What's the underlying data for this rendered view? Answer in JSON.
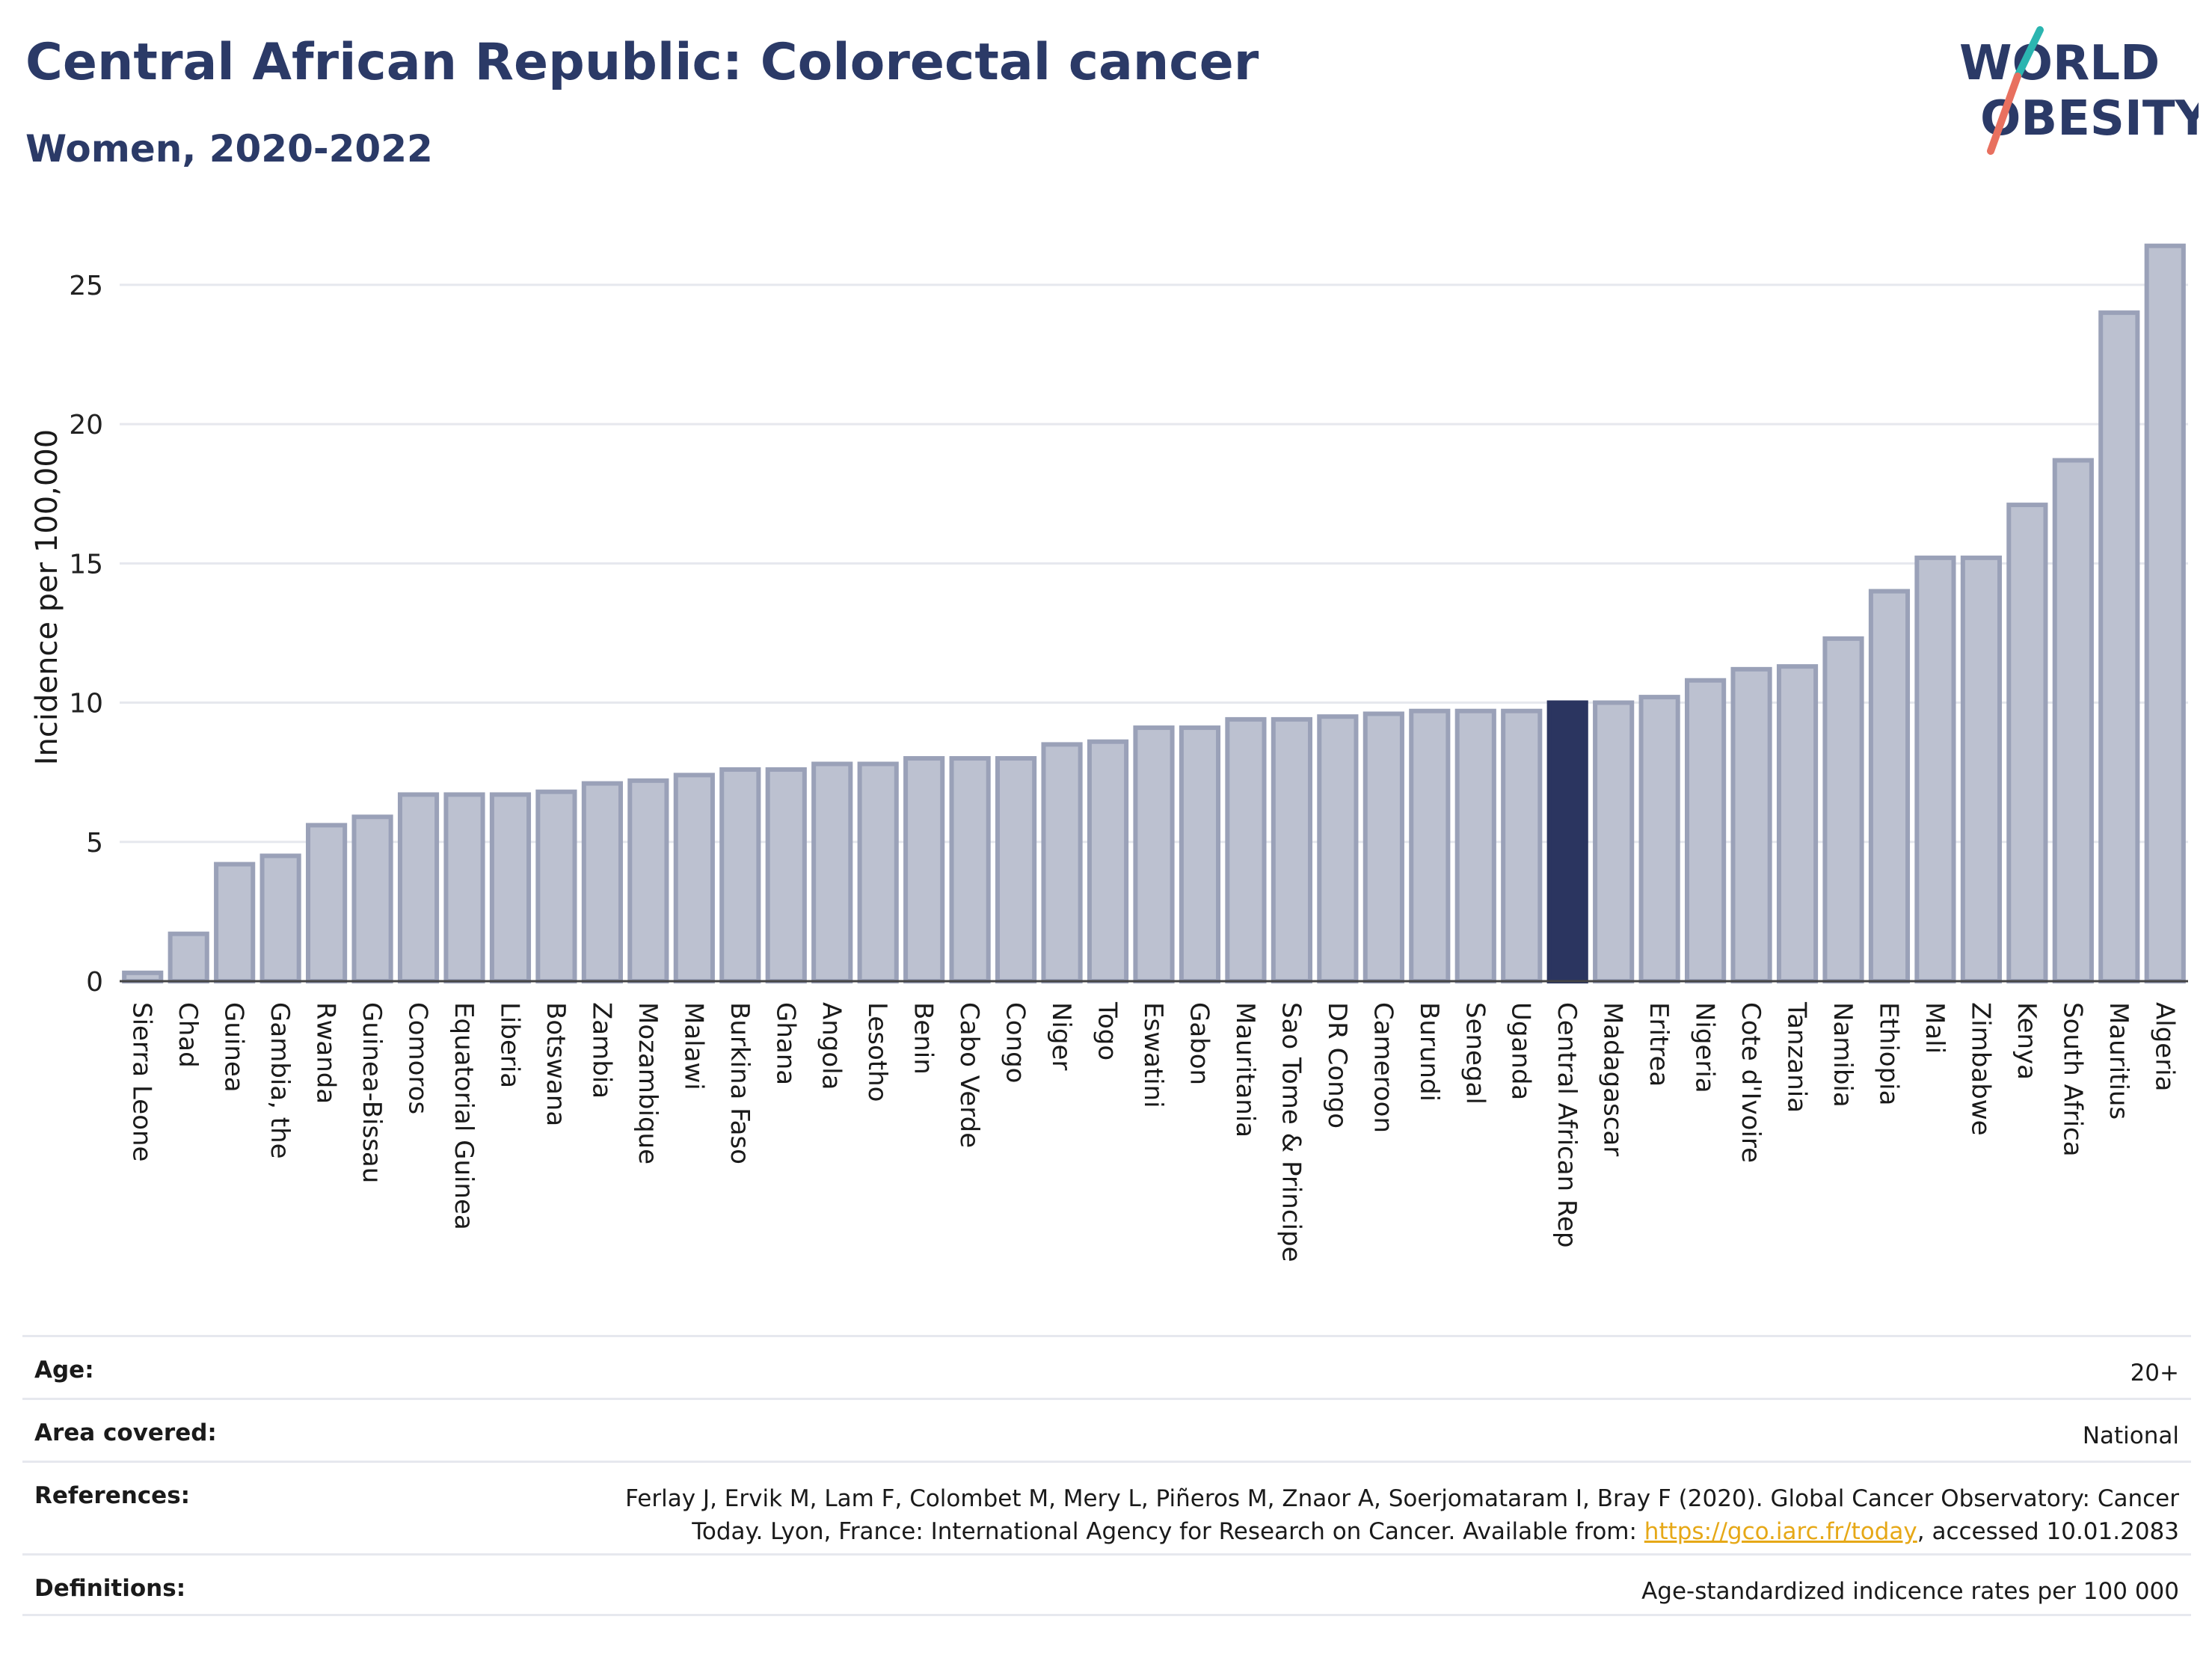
{
  "header": {
    "title": "Central African Republic: Colorectal cancer",
    "subtitle": "Women, 2020-2022"
  },
  "logo": {
    "line1": "WORLD",
    "line2": "OBESITY",
    "accent_colors": [
      "#2bb5b0",
      "#e8705f"
    ]
  },
  "chart_data": {
    "type": "bar",
    "ylabel": "Incidence per 100,000",
    "xlabel": "",
    "ylim": [
      0,
      26.5
    ],
    "yticks": [
      0,
      5,
      10,
      15,
      20,
      25
    ],
    "grid": true,
    "highlight": "Central African Rep",
    "colors": {
      "bar": "#bcc1d0",
      "bar_edge": "#9aa1b8",
      "highlight": "#2b3560",
      "grid": "#e6e8ee"
    },
    "categories": [
      "Sierra Leone",
      "Chad",
      "Guinea",
      "Gambia, the",
      "Rwanda",
      "Guinea-Bissau",
      "Comoros",
      "Equatorial Guinea",
      "Liberia",
      "Botswana",
      "Zambia",
      "Mozambique",
      "Malawi",
      "Burkina Faso",
      "Ghana",
      "Angola",
      "Lesotho",
      "Benin",
      "Cabo Verde",
      "Congo",
      "Niger",
      "Togo",
      "Eswatini",
      "Gabon",
      "Mauritania",
      "Sao Tome & Principe",
      "DR Congo",
      "Cameroon",
      "Burundi",
      "Senegal",
      "Uganda",
      "Central African Rep",
      "Madagascar",
      "Eritrea",
      "Nigeria",
      "Cote d'Ivoire",
      "Tanzania",
      "Namibia",
      "Ethiopia",
      "Mali",
      "Zimbabwe",
      "Kenya",
      "South Africa",
      "Mauritius",
      "Algeria"
    ],
    "values": [
      0.3,
      1.7,
      4.2,
      4.5,
      5.6,
      5.9,
      6.7,
      6.7,
      6.7,
      6.8,
      7.1,
      7.2,
      7.4,
      7.6,
      7.6,
      7.8,
      7.8,
      8.0,
      8.0,
      8.0,
      8.5,
      8.6,
      9.1,
      9.1,
      9.4,
      9.4,
      9.5,
      9.6,
      9.7,
      9.7,
      9.7,
      10.0,
      10.0,
      10.2,
      10.8,
      11.2,
      11.3,
      12.3,
      14.0,
      15.2,
      15.2,
      17.1,
      18.7,
      24.0,
      26.4
    ]
  },
  "info": {
    "age_label": "Age:",
    "age_value": "20+",
    "area_label": "Area covered:",
    "area_value": "National",
    "ref_label": "References:",
    "ref_text_1": "Ferlay J, Ervik M, Lam F, Colombet M, Mery L, Piñeros M, Znaor A, Soerjomataram I, Bray F (2020). Global Cancer Observatory: Cancer Today. Lyon, France: International Agency for Research on Cancer. Available from: ",
    "ref_link": "https://gco.iarc.fr/today",
    "ref_text_2": ", accessed 10.01.2083",
    "def_label": "Definitions:",
    "def_value": "Age-standardized indicence rates per 100 000"
  }
}
